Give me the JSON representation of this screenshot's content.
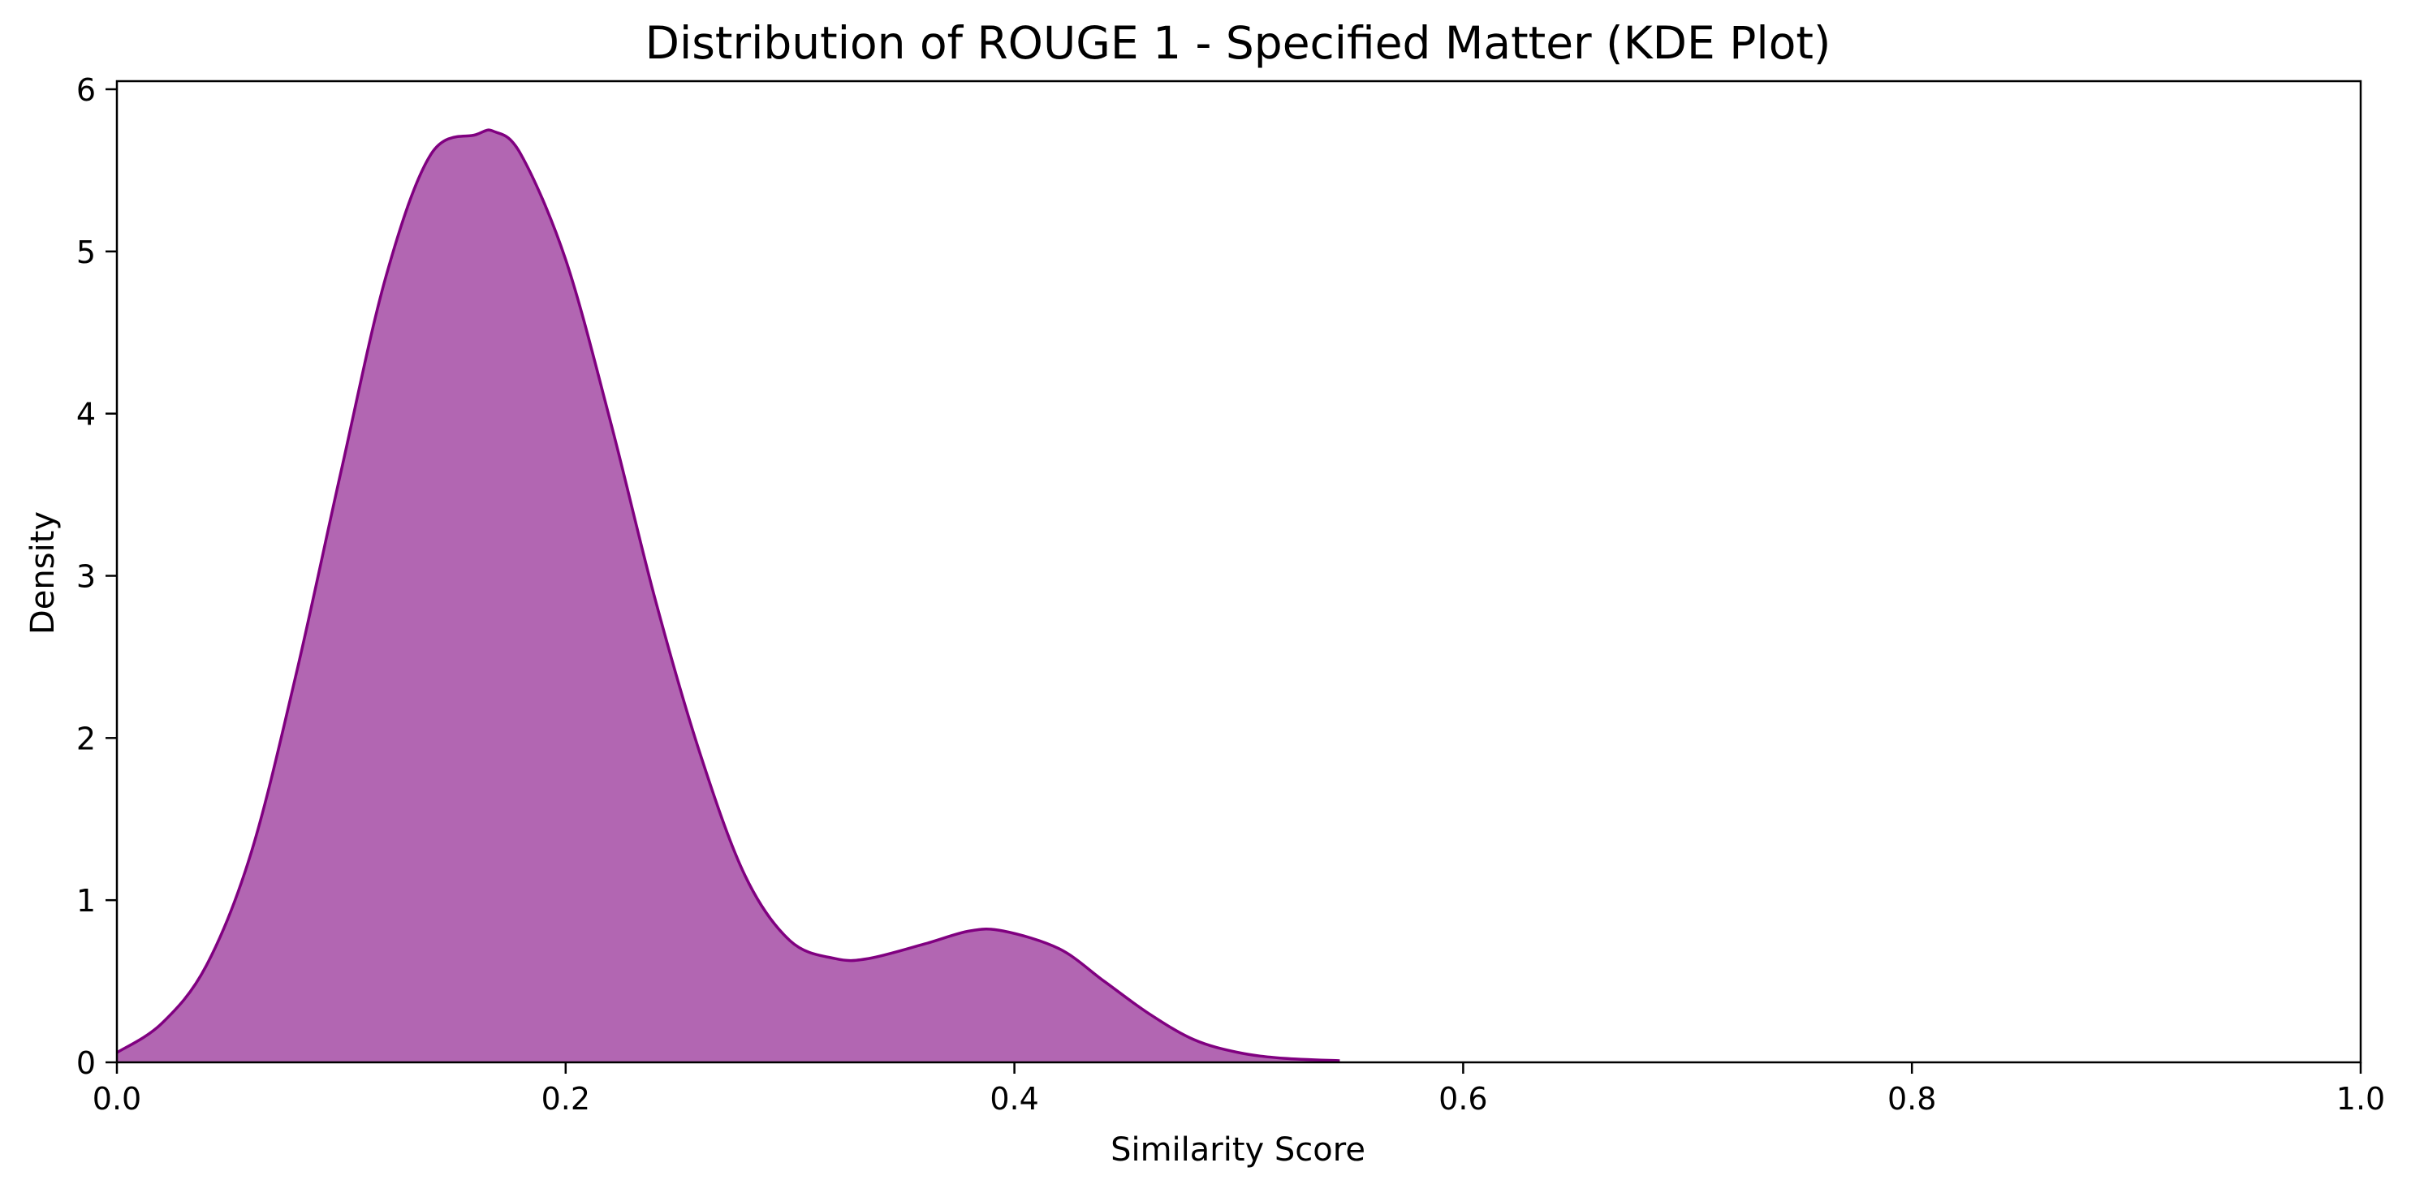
{
  "chart_data": {
    "type": "area",
    "title": "Distribution of ROUGE 1 - Specified Matter (KDE Plot)",
    "xlabel": "Similarity Score",
    "ylabel": "Density",
    "xlim": [
      0.0,
      1.0
    ],
    "ylim": [
      0,
      6.05
    ],
    "x_ticks": [
      "0.0",
      "0.2",
      "0.4",
      "0.6",
      "0.8",
      "1.0"
    ],
    "y_ticks": [
      "0",
      "1",
      "2",
      "3",
      "4",
      "5",
      "6"
    ],
    "grid": false,
    "legend": "none",
    "colors": {
      "fill": "#b266b2",
      "line": "#800080"
    },
    "series": [
      {
        "x": [
          0.0,
          0.02,
          0.04,
          0.06,
          0.08,
          0.1,
          0.12,
          0.14,
          0.16,
          0.168,
          0.18,
          0.2,
          0.22,
          0.24,
          0.26,
          0.28,
          0.3,
          0.32,
          0.335,
          0.36,
          0.38,
          0.395,
          0.42,
          0.44,
          0.46,
          0.48,
          0.5,
          0.52,
          0.545
        ],
        "y": [
          0.06,
          0.24,
          0.6,
          1.3,
          2.4,
          3.65,
          4.85,
          5.6,
          5.72,
          5.74,
          5.6,
          4.95,
          3.95,
          2.85,
          1.9,
          1.15,
          0.75,
          0.64,
          0.64,
          0.73,
          0.81,
          0.81,
          0.7,
          0.5,
          0.3,
          0.14,
          0.06,
          0.025,
          0.01
        ]
      }
    ]
  }
}
